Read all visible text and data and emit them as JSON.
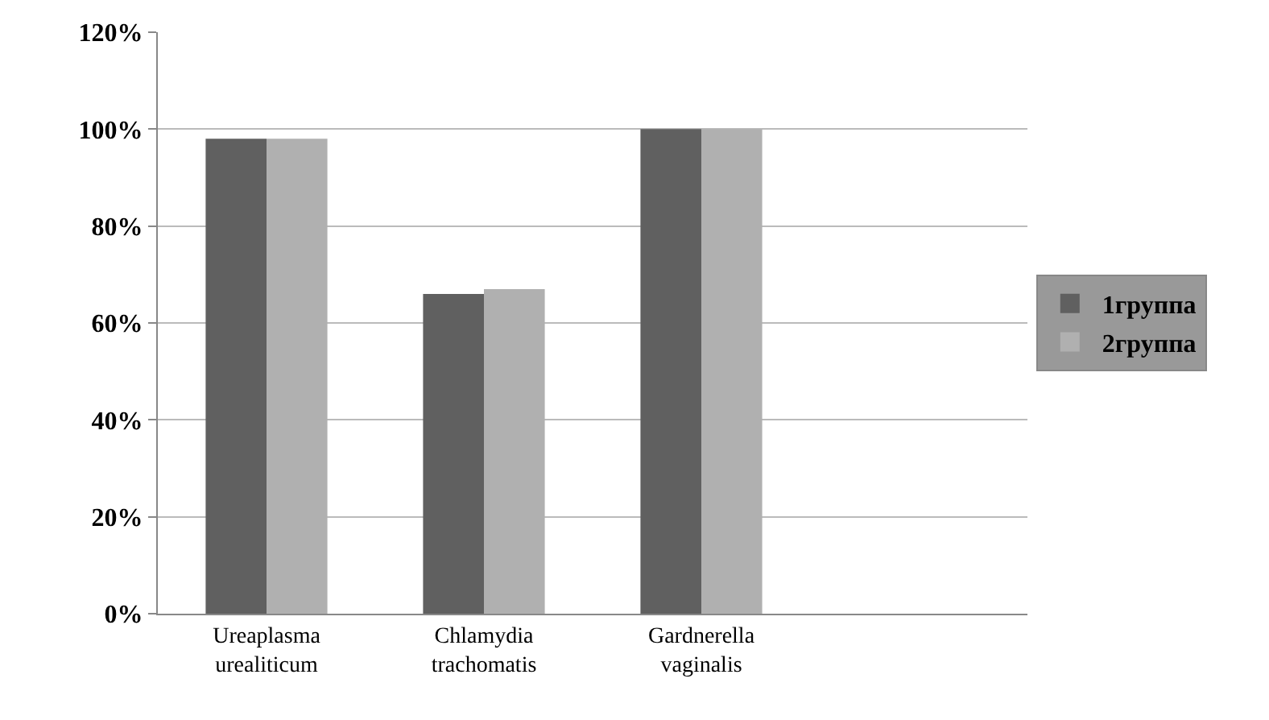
{
  "chart_data": {
    "type": "bar",
    "categories": [
      "Ureaplasma urealiticum",
      "Chlamydia trachomatis",
      "Gardnerella vaginalis",
      null
    ],
    "series": [
      {
        "name": "1группа",
        "color": "#606060",
        "values": [
          98,
          66,
          100,
          null
        ]
      },
      {
        "name": "2группа",
        "color": "#b0b0b0",
        "values": [
          98,
          67,
          100,
          null
        ]
      }
    ],
    "ylim": [
      0,
      120
    ],
    "yticks": [
      {
        "value": 0,
        "label": "0%"
      },
      {
        "value": 20,
        "label": "20%"
      },
      {
        "value": 40,
        "label": "40%"
      },
      {
        "value": 60,
        "label": "60%"
      },
      {
        "value": 80,
        "label": "80%"
      },
      {
        "value": 100,
        "label": "100%"
      },
      {
        "value": 120,
        "label": "120%"
      }
    ],
    "grid": "y",
    "legend": "right"
  }
}
